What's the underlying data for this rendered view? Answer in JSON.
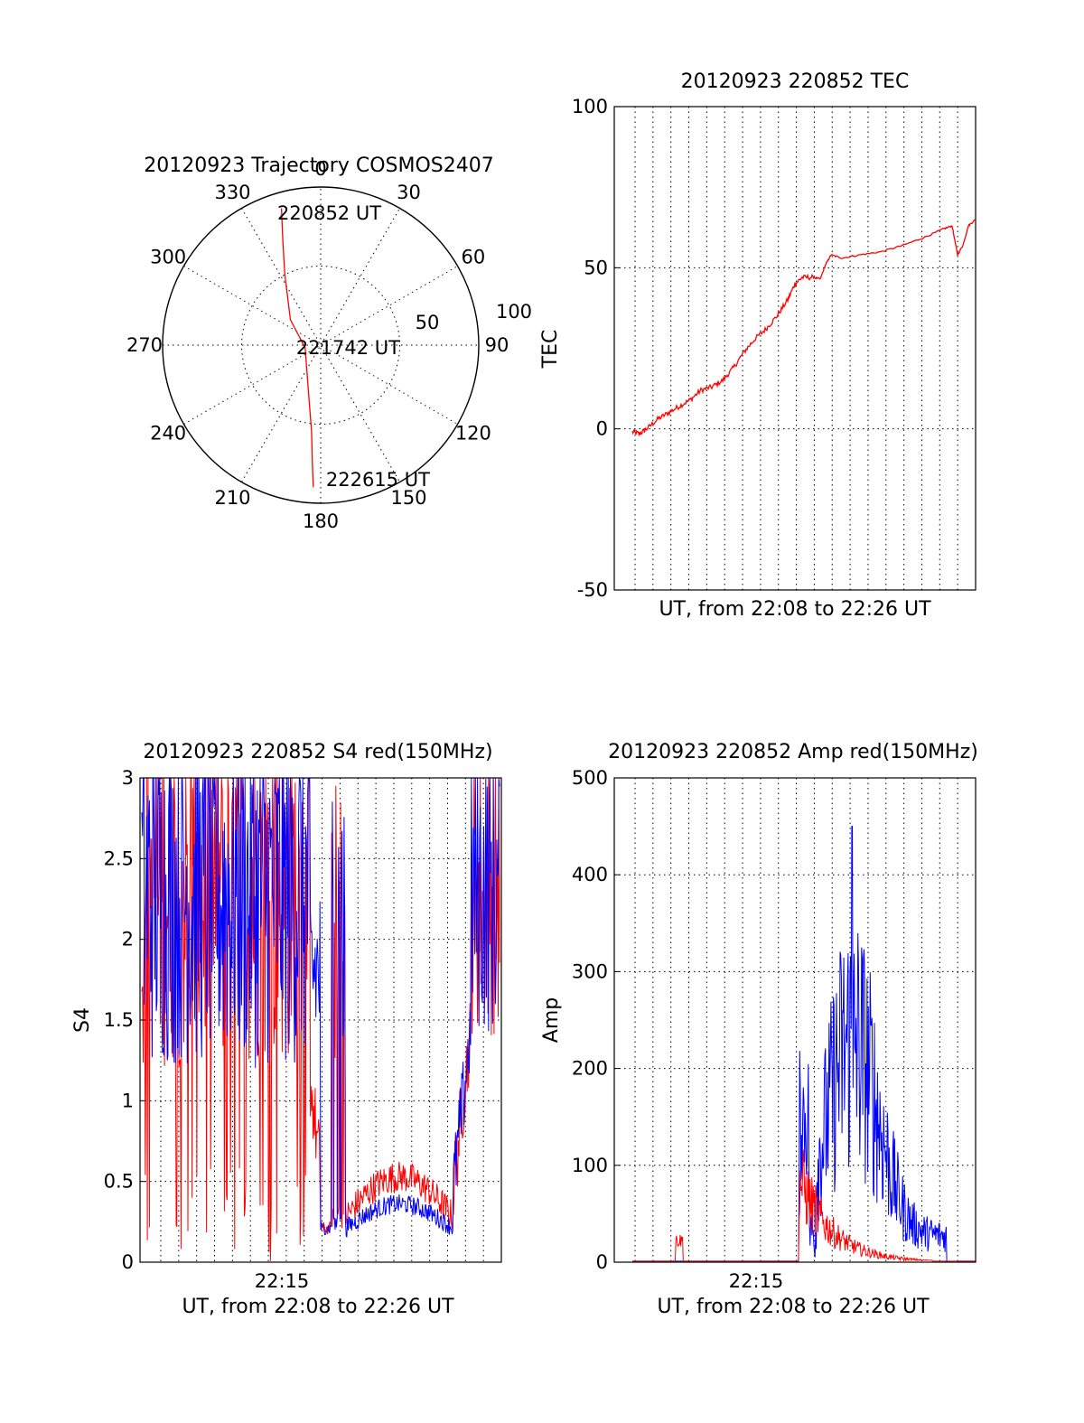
{
  "chart_data": [
    {
      "id": "trajectory",
      "type": "polar",
      "title": "20120923 Trajectory COSMOS2407",
      "azimuth_labels": [
        "0",
        "30",
        "60",
        "90",
        "120",
        "150",
        "180",
        "210",
        "240",
        "270",
        "300",
        "330"
      ],
      "radial_labels": [
        "50",
        "100"
      ],
      "radial_max": 100,
      "grid": true,
      "series": [
        {
          "color": "#ff0000",
          "points": [
            {
              "az": 344.0,
              "r": 90
            },
            {
              "az": 340.0,
              "r": 70
            },
            {
              "az": 333.0,
              "r": 50
            },
            {
              "az": 310.0,
              "r": 25
            },
            {
              "az": 260.0,
              "r": 10
            },
            {
              "az": 195.0,
              "r": 30
            },
            {
              "az": 186.0,
              "r": 55
            },
            {
              "az": 184.0,
              "r": 75
            },
            {
              "az": 183.0,
              "r": 90
            }
          ]
        }
      ],
      "annotations": [
        {
          "text": "220852 UT",
          "az": 360.0,
          "r": 84
        },
        {
          "text": "221742 UT",
          "az": 95.0,
          "r": 12
        },
        {
          "text": "222615 UT",
          "az": 160.0,
          "r": 90
        }
      ]
    },
    {
      "id": "tec",
      "type": "line",
      "title": "20120923 220852 TEC",
      "ylabel": "TEC",
      "xlabel": "UT, from 22:08 to 22:26 UT",
      "ylim": [
        -50,
        100
      ],
      "yticks": [
        "100",
        "50",
        "0",
        "-50"
      ],
      "xlim": [
        0,
        1
      ]
    },
    {
      "id": "s4",
      "type": "line",
      "title": "20120923 220852 S4 red(150MHz)",
      "ylabel": "S4",
      "xlabel": "UT, from 22:08 to 22:26 UT",
      "ylim": [
        0,
        3
      ],
      "yticks": [
        "3",
        "2.5",
        "2",
        "1.5",
        "1",
        "0.5",
        "0"
      ],
      "xtick_label": "22:15"
    },
    {
      "id": "amp",
      "type": "line",
      "title": "20120923 220852 Amp red(150MHz)",
      "ylabel": "Amp",
      "xlabel": "UT, from 22:08 to 22:26 UT",
      "ylim": [
        0,
        500
      ],
      "yticks": [
        "500",
        "400",
        "300",
        "200",
        "100",
        "0"
      ],
      "xtick_label": "22:15"
    }
  ],
  "colors": {
    "red": "#ff0000",
    "blue": "#0000ff"
  }
}
